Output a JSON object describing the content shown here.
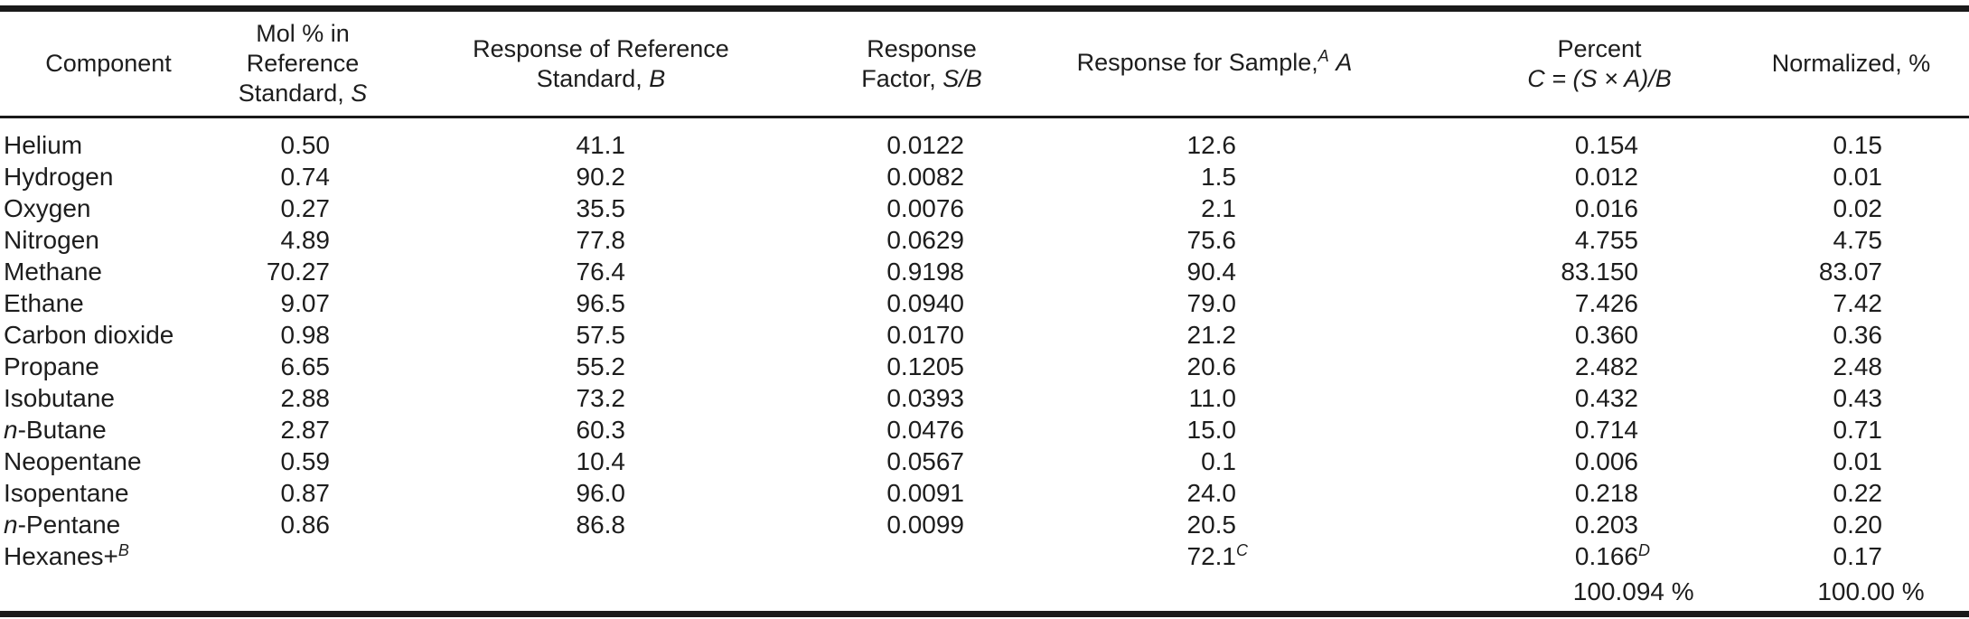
{
  "page": {
    "background": "#ffffff",
    "text_color": "#1d1d1d",
    "rule_color": "#1a1a1a"
  },
  "table": {
    "headers": [
      {
        "id": "component",
        "lines": [
          [
            {
              "t": "Component"
            }
          ]
        ]
      },
      {
        "id": "mol-percent-reference-standard",
        "lines": [
          [
            {
              "t": "Mol % in"
            }
          ],
          [
            {
              "t": "Reference"
            }
          ],
          [
            {
              "t": "Standard, "
            },
            {
              "t": "S",
              "i": true
            }
          ]
        ]
      },
      {
        "id": "response-reference-standard",
        "lines": [
          [
            {
              "t": "Response of Reference"
            }
          ],
          [
            {
              "t": "Standard, "
            },
            {
              "t": "B",
              "i": true
            }
          ]
        ]
      },
      {
        "id": "response-factor",
        "lines": [
          [
            {
              "t": "Response"
            }
          ],
          [
            {
              "t": "Factor, "
            },
            {
              "t": "S/B",
              "i": true
            }
          ]
        ]
      },
      {
        "id": "response-sample",
        "lines": [
          [
            {
              "t": "Response for Sample,"
            },
            {
              "t": "A",
              "i": true,
              "sup": true
            },
            {
              "t": " "
            },
            {
              "t": "A",
              "i": true
            }
          ]
        ]
      },
      {
        "id": "percent",
        "lines": [
          [
            {
              "t": "Percent"
            }
          ],
          [
            {
              "t": "C = (S × A)/B",
              "i": true
            }
          ]
        ]
      },
      {
        "id": "normalized",
        "lines": [
          [
            {
              "t": "Normalized, %"
            }
          ]
        ]
      }
    ],
    "rows": [
      {
        "slug": "helium",
        "component": [
          {
            "t": "Helium"
          }
        ],
        "values": [
          "0.50",
          "41.1",
          "0.0122",
          "12.6",
          "0.154",
          "0.15"
        ]
      },
      {
        "slug": "hydrogen",
        "component": [
          {
            "t": "Hydrogen"
          }
        ],
        "values": [
          "0.74",
          "90.2",
          "0.0082",
          "1.5",
          "0.012",
          "0.01"
        ]
      },
      {
        "slug": "oxygen",
        "component": [
          {
            "t": "Oxygen"
          }
        ],
        "values": [
          "0.27",
          "35.5",
          "0.0076",
          "2.1",
          "0.016",
          "0.02"
        ]
      },
      {
        "slug": "nitrogen",
        "component": [
          {
            "t": "Nitrogen"
          }
        ],
        "values": [
          "4.89",
          "77.8",
          "0.0629",
          "75.6",
          "4.755",
          "4.75"
        ]
      },
      {
        "slug": "methane",
        "component": [
          {
            "t": "Methane"
          }
        ],
        "values": [
          "70.27",
          "76.4",
          "0.9198",
          "90.4",
          "83.150",
          "83.07"
        ]
      },
      {
        "slug": "ethane",
        "component": [
          {
            "t": "Ethane"
          }
        ],
        "values": [
          "9.07",
          "96.5",
          "0.0940",
          "79.0",
          "7.426",
          "7.42"
        ]
      },
      {
        "slug": "carbon-dioxide",
        "component": [
          {
            "t": "Carbon dioxide"
          }
        ],
        "values": [
          "0.98",
          "57.5",
          "0.0170",
          "21.2",
          "0.360",
          "0.36"
        ]
      },
      {
        "slug": "propane",
        "component": [
          {
            "t": "Propane"
          }
        ],
        "values": [
          "6.65",
          "55.2",
          "0.1205",
          "20.6",
          "2.482",
          "2.48"
        ]
      },
      {
        "slug": "isobutane",
        "component": [
          {
            "t": "Isobutane"
          }
        ],
        "values": [
          "2.88",
          "73.2",
          "0.0393",
          "11.0",
          "0.432",
          "0.43"
        ]
      },
      {
        "slug": "n-butane",
        "component": [
          {
            "t": "n",
            "i": true
          },
          {
            "t": "-Butane"
          }
        ],
        "values": [
          "2.87",
          "60.3",
          "0.0476",
          "15.0",
          "0.714",
          "0.71"
        ]
      },
      {
        "slug": "neopentane",
        "component": [
          {
            "t": "Neopentane"
          }
        ],
        "values": [
          "0.59",
          "10.4",
          "0.0567",
          "0.1",
          "0.006",
          "0.01"
        ]
      },
      {
        "slug": "isopentane",
        "component": [
          {
            "t": "Isopentane"
          }
        ],
        "values": [
          "0.87",
          "96.0",
          "0.0091",
          "24.0",
          "0.218",
          "0.22"
        ]
      },
      {
        "slug": "n-pentane",
        "component": [
          {
            "t": "n",
            "i": true
          },
          {
            "t": "-Pentane"
          }
        ],
        "values": [
          "0.86",
          "86.8",
          "0.0099",
          "20.5",
          "0.203",
          "0.20"
        ]
      },
      {
        "slug": "hexanes-plus",
        "component": [
          {
            "t": "Hexanes+"
          },
          {
            "t": "B",
            "i": true,
            "sup": true
          }
        ],
        "values": [
          "",
          "",
          "",
          {
            "v": "72.1",
            "sup": "C"
          },
          {
            "v": "0.166",
            "sup": "D"
          },
          "0.17"
        ]
      },
      {
        "slug": "totals",
        "total": true,
        "component": [],
        "values": [
          "",
          "",
          "",
          "",
          {
            "v": "100.094",
            "suffix": " %"
          },
          {
            "v": "100.00",
            "suffix": " %"
          }
        ]
      }
    ]
  }
}
